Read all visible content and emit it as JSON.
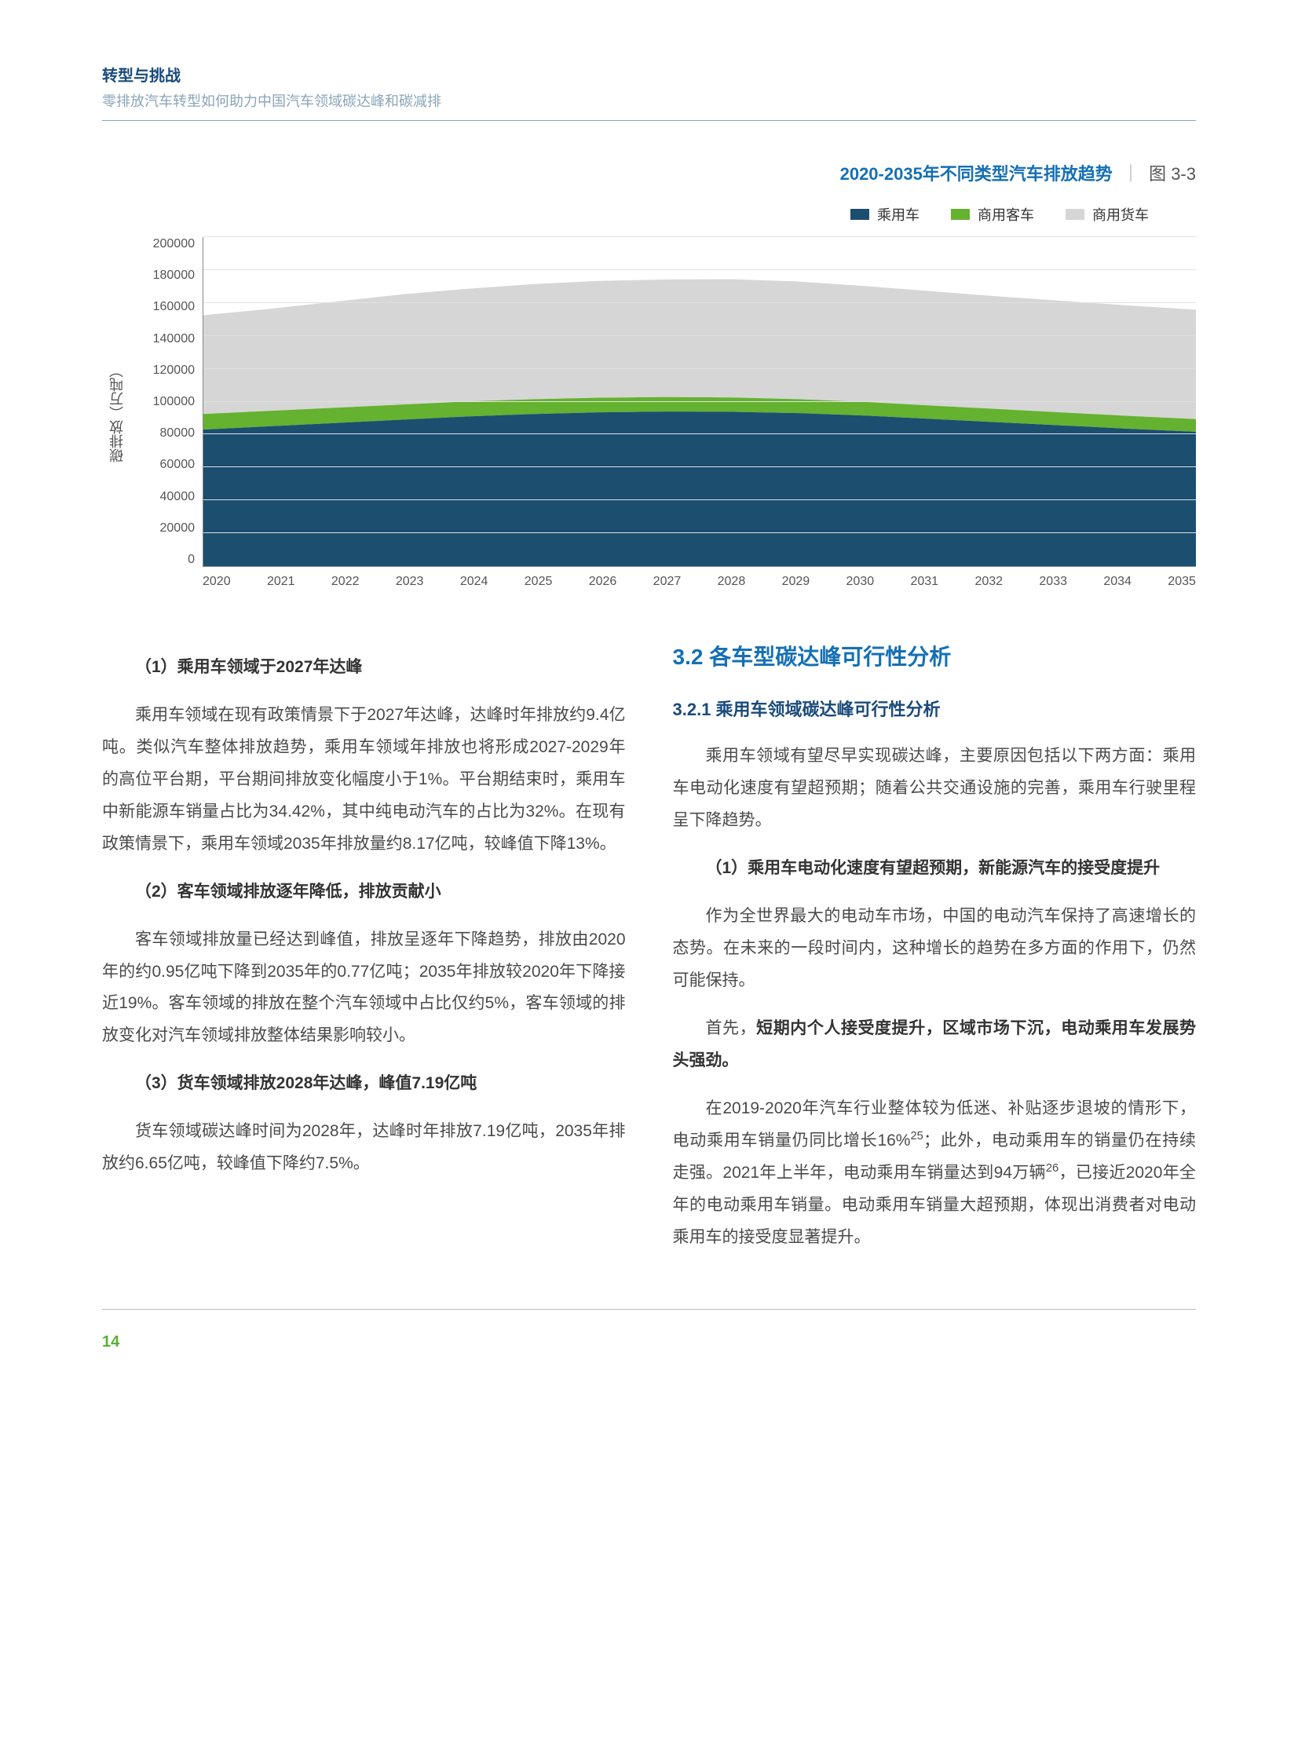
{
  "header": {
    "title": "转型与挑战",
    "subtitle": "零排放汽车转型如何助力中国汽车领域碳达峰和碳减排"
  },
  "chart": {
    "type": "area",
    "title": "2020-2035年不同类型汽车排放趋势",
    "fig_label": "图 3-3",
    "y_axis_label": "碳排放（万吨）",
    "ylim": [
      0,
      200000
    ],
    "ytick_step": 20000,
    "y_ticks": [
      "200000",
      "180000",
      "160000",
      "140000",
      "120000",
      "100000",
      "80000",
      "60000",
      "40000",
      "20000",
      "0"
    ],
    "x_ticks": [
      "2020",
      "2021",
      "2022",
      "2023",
      "2024",
      "2025",
      "2026",
      "2027",
      "2028",
      "2029",
      "2030",
      "2031",
      "2032",
      "2033",
      "2034",
      "2035"
    ],
    "legend": [
      {
        "label": "乘用车",
        "color": "#1c4e70"
      },
      {
        "label": "商用客车",
        "color": "#64b22f"
      },
      {
        "label": "商用货车",
        "color": "#d6d6d6"
      }
    ],
    "grid_color": "#e0e0e0",
    "background_color": "#ffffff",
    "series": {
      "passenger": [
        83000,
        85000,
        87000,
        89000,
        91000,
        92500,
        93500,
        94000,
        93800,
        93000,
        91500,
        89500,
        87500,
        85500,
        83500,
        81700
      ],
      "bus": [
        9500,
        9400,
        9300,
        9200,
        9100,
        9000,
        8900,
        8800,
        8700,
        8500,
        8300,
        8100,
        8000,
        7900,
        7800,
        7700
      ],
      "truck": [
        60000,
        62000,
        64500,
        67000,
        68500,
        70000,
        71000,
        71500,
        71900,
        71500,
        70500,
        69500,
        68500,
        67800,
        67100,
        66500
      ]
    }
  },
  "left": {
    "h1": "（1）乘用车领域于2027年达峰",
    "p1": "乘用车领域在现有政策情景下于2027年达峰，达峰时年排放约9.4亿吨。类似汽车整体排放趋势，乘用车领域年排放也将形成2027-2029年的高位平台期，平台期间排放变化幅度小于1%。平台期结束时，乘用车中新能源车销量占比为34.42%，其中纯电动汽车的占比为32%。在现有政策情景下，乘用车领域2035年排放量约8.17亿吨，较峰值下降13%。",
    "h2": "（2）客车领域排放逐年降低，排放贡献小",
    "p2": "客车领域排放量已经达到峰值，排放呈逐年下降趋势，排放由2020年的约0.95亿吨下降到2035年的0.77亿吨；2035年排放较2020年下降接近19%。客车领域的排放在整个汽车领域中占比仅约5%，客车领域的排放变化对汽车领域排放整体结果影响较小。",
    "h3": "（3）货车领域排放2028年达峰，峰值7.19亿吨",
    "p3": "货车领域碳达峰时间为2028年，达峰时年排放7.19亿吨，2035年排放约6.65亿吨，较峰值下降约7.5%。"
  },
  "right": {
    "section": "3.2  各车型碳达峰可行性分析",
    "sub": "3.2.1 乘用车领域碳达峰可行性分析",
    "p1": "乘用车领域有望尽早实现碳达峰，主要原因包括以下两方面：乘用车电动化速度有望超预期；随着公共交通设施的完善，乘用车行驶里程呈下降趋势。",
    "h1": "（1）乘用车电动化速度有望超预期，新能源汽车的接受度提升",
    "p2": "作为全世界最大的电动车市场，中国的电动汽车保持了高速增长的态势。在未来的一段时间内，这种增长的趋势在多方面的作用下，仍然可能保持。",
    "p3a": "首先，",
    "p3b": "短期内个人接受度提升，区域市场下沉，电动乘用车发展势头强劲。",
    "p4_pre": "在2019-2020年汽车行业整体较为低迷、补贴逐步退坡的情形下，电动乘用车销量仍同比增长16%",
    "p4_sup1": "25",
    "p4_mid": "；此外，电动乘用车的销量仍在持续走强。2021年上半年，电动乘用车销量达到94万辆",
    "p4_sup2": "26",
    "p4_post": "，已接近2020年全年的电动乘用车销量。电动乘用车销量大超预期，体现出消费者对电动乘用车的接受度显著提升。"
  },
  "page_number": "14"
}
